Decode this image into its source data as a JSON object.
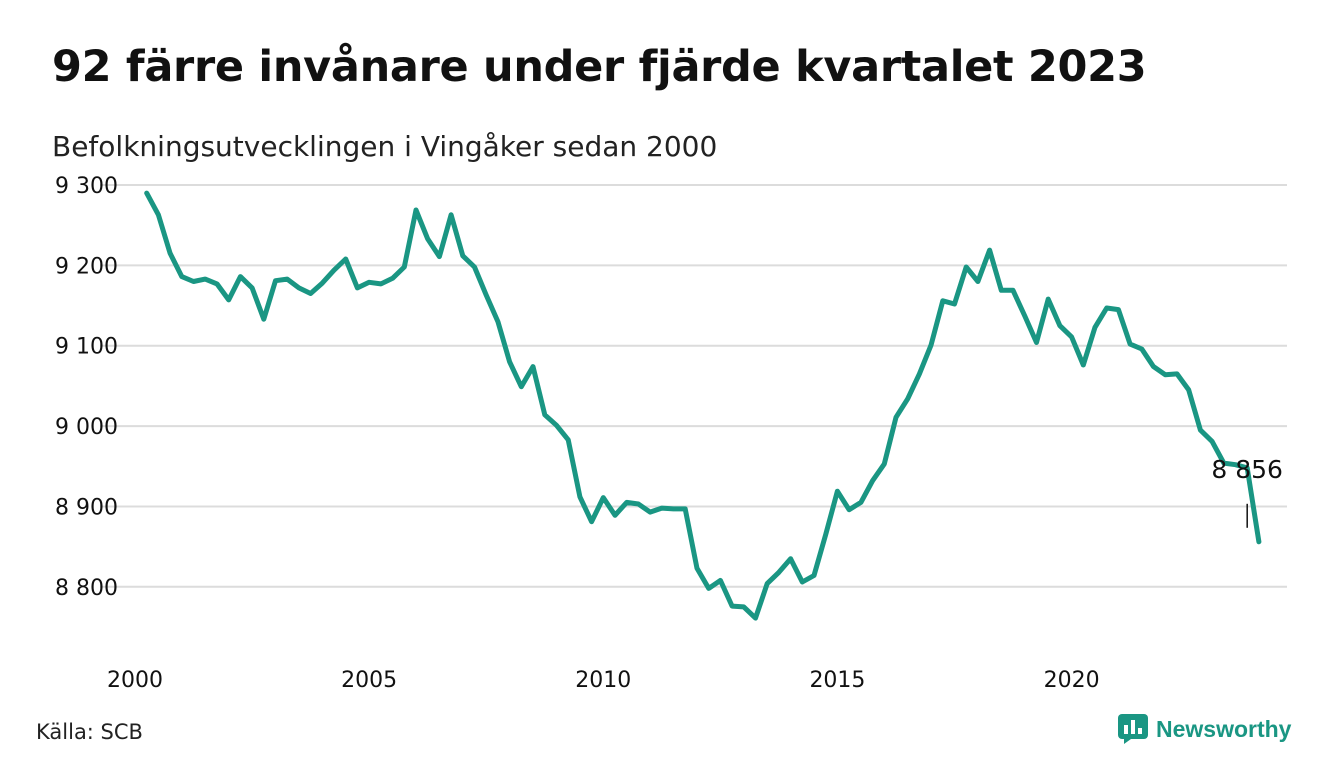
{
  "title": "92 färre invånare under fjärde kvartalet 2023",
  "subtitle": "Befolkningsutvecklingen i Vingåker sedan 2000",
  "source": "Källa: SCB",
  "brand": {
    "name": "Newsworthy",
    "icon": "bar-chart-logo-icon",
    "color": "#1a9683"
  },
  "colors": {
    "line": "#1a9683",
    "grid": "#dcdcdc",
    "text": "#111111"
  },
  "chart_data": {
    "type": "line",
    "title": "92 färre invånare under fjärde kvartalet 2023",
    "subtitle": "Befolkningsutvecklingen i Vingåker sedan 2000",
    "xlim": [
      2000,
      2024.6
    ],
    "ylim": [
      8740,
      9315
    ],
    "x_ticks": [
      2000,
      2005,
      2010,
      2015,
      2020
    ],
    "x_tick_labels": [
      "2000",
      "2005",
      "2010",
      "2015",
      "2020"
    ],
    "y_ticks": [
      8800,
      8900,
      9000,
      9100,
      9200,
      9300
    ],
    "y_tick_labels": [
      "8 800",
      "8 900",
      "9 000",
      "9 100",
      "9 200",
      "9 300"
    ],
    "grid": true,
    "annotation": {
      "x": 2023.75,
      "y": 8856,
      "label": "8 856"
    },
    "series": [
      {
        "frequency": "quarterly",
        "start": 2000.25,
        "step": 0.25,
        "values": [
          9290,
          9263,
          9215,
          9186,
          9180,
          9183,
          9177,
          9157,
          9186,
          9172,
          9133,
          9181,
          9183,
          9172,
          9165,
          9178,
          9194,
          9208,
          9172,
          9179,
          9177,
          9184,
          9198,
          9269,
          9233,
          9211,
          9263,
          9212,
          9198,
          9163,
          9130,
          9080,
          9049,
          9074,
          9014,
          9001,
          8983,
          8912,
          8881,
          8911,
          8889,
          8905,
          8903,
          8893,
          8898,
          8897,
          8897,
          8823,
          8798,
          8808,
          8776,
          8775,
          8761,
          8804,
          8818,
          8835,
          8806,
          8814,
          8865,
          8919,
          8896,
          8905,
          8932,
          8953,
          9011,
          9034,
          9065,
          9101,
          9156,
          9152,
          9198,
          9180,
          9219,
          9169,
          9169,
          9137,
          9104,
          9158,
          9125,
          9111,
          9076,
          9123,
          9147,
          9145,
          9102,
          9096,
          9074,
          9064,
          9065,
          9045,
          8995,
          8981,
          8954,
          8952,
          8948,
          8856
        ]
      }
    ]
  }
}
